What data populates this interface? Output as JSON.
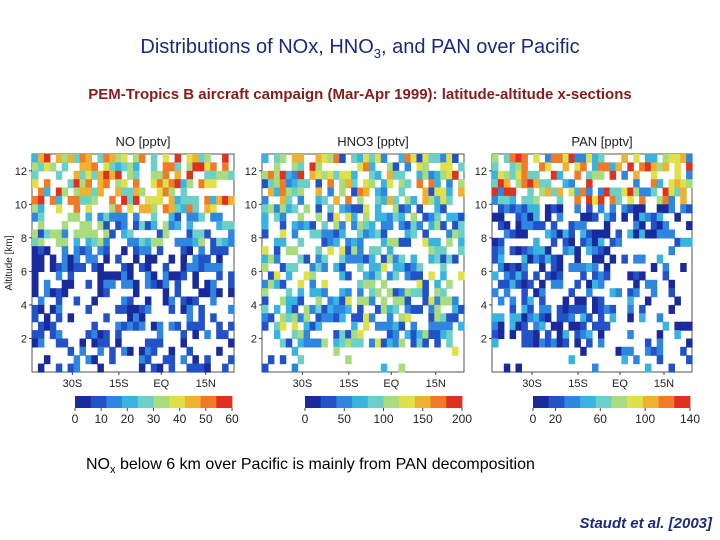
{
  "title_main": "Distributions of NOx, HNO",
  "title_sub": "3",
  "title_rest": ", and PAN over Pacific",
  "subtitle": "PEM-Tropics B aircraft campaign (Mar-Apr 1999): latitude-altitude x-sections",
  "note_pre": "NO",
  "note_sub": "x",
  "note_post": " below 6 km over Pacific  is mainly from PAN decomposition",
  "citation": "Staudt et al. [2003]",
  "colors": {
    "scale": [
      "#1a2a9a",
      "#2352c8",
      "#2f86e0",
      "#39b4e0",
      "#6cd0c8",
      "#a8dc7e",
      "#e0e04a",
      "#f0b030",
      "#f07a26",
      "#e03020"
    ]
  },
  "chart_data": [
    {
      "type": "heatmap",
      "title": "NO [pptv]",
      "ylabel": "Altitude [km]",
      "yticks": [
        "12",
        "10",
        "8",
        "6",
        "4",
        "2"
      ],
      "ylim": [
        0,
        13
      ],
      "xticks": [
        "30S",
        "15S",
        "EQ",
        "15N"
      ],
      "colorbar_ticks": [
        "0",
        "10",
        "20",
        "30",
        "40",
        "50",
        "60"
      ],
      "colorbar_range": [
        0,
        60
      ]
    },
    {
      "type": "heatmap",
      "title": "HNO3 [pptv]",
      "yticks": [
        "12",
        "10",
        "8",
        "6",
        "4",
        "2"
      ],
      "ylim": [
        0,
        13
      ],
      "xticks": [
        "30S",
        "15S",
        "EQ",
        "15N"
      ],
      "colorbar_ticks": [
        "0",
        "50",
        "100",
        "150",
        "200"
      ],
      "colorbar_range": [
        0,
        200
      ]
    },
    {
      "type": "heatmap",
      "title": "PAN [pptv]",
      "yticks": [
        "12",
        "10",
        "8",
        "6",
        "4",
        "2"
      ],
      "ylim": [
        0,
        13
      ],
      "xticks": [
        "30S",
        "15S",
        "EQ",
        "15N"
      ],
      "colorbar_ticks": [
        "0",
        "20",
        "60",
        "100",
        "140"
      ],
      "colorbar_range": [
        0,
        140
      ]
    }
  ]
}
